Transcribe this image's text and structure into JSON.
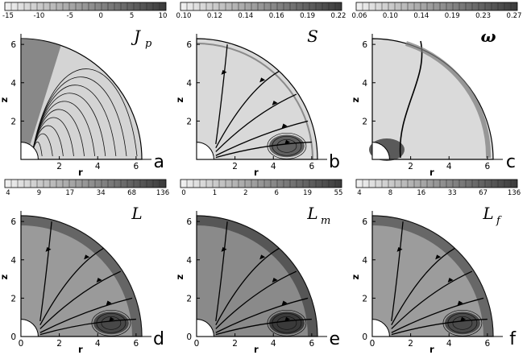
{
  "figure": {
    "panels": [
      {
        "id": "a",
        "letter": "a",
        "quantity": "J",
        "quantity_sub": "p",
        "colorbar_ticks": [
          "-15",
          "-10",
          "-5",
          "0",
          "5",
          "10"
        ],
        "r_ticks": [
          "2",
          "4",
          "6"
        ],
        "z_ticks": [
          "2",
          "4",
          "6"
        ],
        "xlabel": "r",
        "ylabel": "z",
        "fill_base": "#d4d4d4",
        "fill_accent": "#7a7a7a",
        "streamlines": false
      },
      {
        "id": "b",
        "letter": "b",
        "quantity": "S",
        "quantity_sub": "",
        "colorbar_ticks": [
          "0.10",
          "0.12",
          "0.14",
          "0.16",
          "0.19",
          "0.22"
        ],
        "r_ticks": [
          "2",
          "4",
          "6"
        ],
        "z_ticks": [
          "2",
          "4",
          "6"
        ],
        "xlabel": "r",
        "ylabel": "z",
        "fill_base": "#d9d9d9",
        "fill_accent": "#4a4a4a",
        "streamlines": true
      },
      {
        "id": "c",
        "letter": "c",
        "quantity": "ω",
        "quantity_sub": "",
        "colorbar_ticks": [
          "0.06",
          "0.10",
          "0.14",
          "0.19",
          "0.23",
          "0.27"
        ],
        "r_ticks": [
          "2",
          "4",
          "6"
        ],
        "z_ticks": [
          "2",
          "4",
          "6"
        ],
        "xlabel": "r",
        "ylabel": "z",
        "fill_base": "#dadada",
        "fill_accent": "#5a5a5a",
        "streamlines": false
      },
      {
        "id": "d",
        "letter": "d",
        "quantity": "L",
        "quantity_sub": "",
        "colorbar_ticks": [
          "4",
          "9",
          "17",
          "34",
          "68",
          "136"
        ],
        "r_ticks": [
          "0",
          "2",
          "4",
          "6"
        ],
        "z_ticks": [
          "0",
          "2",
          "4",
          "6"
        ],
        "xlabel": "r",
        "ylabel": "z",
        "fill_base": "#9a9a9a",
        "fill_accent": "#3a3a3a",
        "streamlines": true
      },
      {
        "id": "e",
        "letter": "e",
        "quantity": "L",
        "quantity_sub": "m",
        "colorbar_ticks": [
          "0",
          "1",
          "2",
          "6",
          "19",
          "55"
        ],
        "r_ticks": [
          "0",
          "2",
          "4",
          "6"
        ],
        "z_ticks": [
          "0",
          "2",
          "4",
          "6"
        ],
        "xlabel": "r",
        "ylabel": "z",
        "fill_base": "#8a8a8a",
        "fill_accent": "#2c2c2c",
        "streamlines": true
      },
      {
        "id": "f",
        "letter": "f",
        "quantity": "L",
        "quantity_sub": "f",
        "colorbar_ticks": [
          "4",
          "8",
          "16",
          "33",
          "67",
          "136"
        ],
        "r_ticks": [
          "0",
          "2",
          "4",
          "6"
        ],
        "z_ticks": [
          "0",
          "2",
          "4",
          "6"
        ],
        "xlabel": "r",
        "ylabel": "z",
        "fill_base": "#9c9c9c",
        "fill_accent": "#3c3c3c",
        "streamlines": true
      }
    ]
  }
}
